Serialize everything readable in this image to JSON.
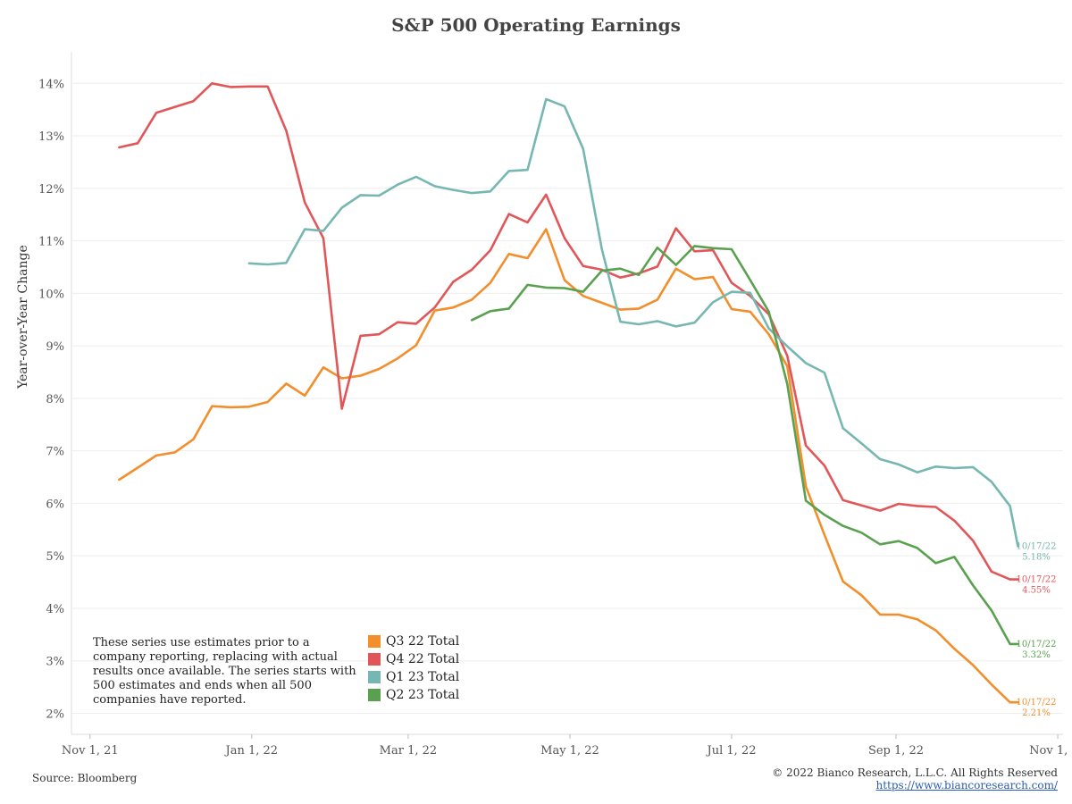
{
  "title": "S&P 500 Operating Earnings",
  "note": "These series use estimates prior to a company reporting, replacing with actual results once available. The series starts with 500 estimates and ends when all 500 companies have reported.",
  "source": "Source: Bloomberg",
  "copyright": "© 2022 Bianco Research, L.L.C. All Rights Reserved",
  "url": "https://www.biancoresearch.com/",
  "chart_data": {
    "type": "line",
    "title": "S&P 500 Operating Earnings",
    "xlabel": "",
    "ylabel": "Year-over-Year Change",
    "y_unit": "%",
    "ylim": [
      1.6,
      14.6
    ],
    "xlim": [
      "2021-10-25",
      "2022-11-03"
    ],
    "grid": "horizontal",
    "legend_position": "bottom-center",
    "x_ticks": [
      {
        "label": "Nov 1, 21",
        "date": "2021-11-01"
      },
      {
        "label": "Jan 1, 22",
        "date": "2022-01-01"
      },
      {
        "label": "Mar 1, 22",
        "date": "2022-03-01"
      },
      {
        "label": "May 1, 22",
        "date": "2022-05-01"
      },
      {
        "label": "Jul 1, 22",
        "date": "2022-07-01"
      },
      {
        "label": "Sep 1, 22",
        "date": "2022-09-01"
      },
      {
        "label": "Nov 1, 22",
        "date": "2022-11-01"
      }
    ],
    "y_ticks": [
      {
        "label": "2%",
        "value": 2
      },
      {
        "label": "3%",
        "value": 3
      },
      {
        "label": "4%",
        "value": 4
      },
      {
        "label": "5%",
        "value": 5
      },
      {
        "label": "6%",
        "value": 6
      },
      {
        "label": "7%",
        "value": 7
      },
      {
        "label": "8%",
        "value": 8
      },
      {
        "label": "9%",
        "value": 9
      },
      {
        "label": "10%",
        "value": 10
      },
      {
        "label": "11%",
        "value": 11
      },
      {
        "label": "12%",
        "value": 12
      },
      {
        "label": "13%",
        "value": 13
      },
      {
        "label": "14%",
        "value": 14
      }
    ],
    "series": [
      {
        "name": "Q3 22 Total",
        "color": "#f28e2b",
        "end_label": {
          "date": "10/17/22",
          "value": "2.21%"
        },
        "x": [
          "2021-11-12",
          "2021-11-19",
          "2021-11-26",
          "2021-12-03",
          "2021-12-10",
          "2021-12-17",
          "2021-12-24",
          "2021-12-31",
          "2022-01-07",
          "2022-01-14",
          "2022-01-21",
          "2022-01-28",
          "2022-02-04",
          "2022-02-11",
          "2022-02-18",
          "2022-02-25",
          "2022-03-04",
          "2022-03-11",
          "2022-03-18",
          "2022-03-25",
          "2022-04-01",
          "2022-04-08",
          "2022-04-15",
          "2022-04-22",
          "2022-04-29",
          "2022-05-06",
          "2022-05-13",
          "2022-05-20",
          "2022-05-27",
          "2022-06-03",
          "2022-06-10",
          "2022-06-17",
          "2022-06-24",
          "2022-07-01",
          "2022-07-08",
          "2022-07-15",
          "2022-07-22",
          "2022-07-29",
          "2022-08-05",
          "2022-08-12",
          "2022-08-19",
          "2022-08-26",
          "2022-09-02",
          "2022-09-09",
          "2022-09-16",
          "2022-09-23",
          "2022-09-30",
          "2022-10-07",
          "2022-10-14",
          "2022-10-17"
        ],
        "values": [
          6.45,
          6.68,
          6.91,
          6.97,
          7.22,
          7.85,
          7.83,
          7.84,
          7.93,
          8.28,
          8.05,
          8.59,
          8.38,
          8.43,
          8.56,
          8.76,
          9.01,
          9.67,
          9.73,
          9.88,
          10.2,
          10.75,
          10.67,
          11.22,
          10.25,
          9.95,
          9.82,
          9.69,
          9.71,
          9.88,
          10.47,
          10.27,
          10.31,
          9.7,
          9.65,
          9.22,
          8.61,
          6.32,
          5.4,
          4.51,
          4.25,
          3.88,
          3.88,
          3.79,
          3.58,
          3.23,
          2.92,
          2.55,
          2.21,
          2.21
        ]
      },
      {
        "name": "Q4 22 Total",
        "color": "#e15759",
        "end_label": {
          "date": "10/17/22",
          "value": "4.55%"
        },
        "x": [
          "2021-11-12",
          "2021-11-19",
          "2021-11-26",
          "2021-12-03",
          "2021-12-10",
          "2021-12-17",
          "2021-12-24",
          "2021-12-31",
          "2022-01-07",
          "2022-01-14",
          "2022-01-21",
          "2022-01-28",
          "2022-02-04",
          "2022-02-11",
          "2022-02-18",
          "2022-02-25",
          "2022-03-04",
          "2022-03-11",
          "2022-03-18",
          "2022-03-25",
          "2022-04-01",
          "2022-04-08",
          "2022-04-15",
          "2022-04-22",
          "2022-04-29",
          "2022-05-06",
          "2022-05-13",
          "2022-05-20",
          "2022-05-27",
          "2022-06-03",
          "2022-06-10",
          "2022-06-17",
          "2022-06-24",
          "2022-07-01",
          "2022-07-08",
          "2022-07-15",
          "2022-07-22",
          "2022-07-29",
          "2022-08-05",
          "2022-08-12",
          "2022-08-19",
          "2022-08-26",
          "2022-09-02",
          "2022-09-09",
          "2022-09-16",
          "2022-09-23",
          "2022-09-30",
          "2022-10-07",
          "2022-10-14",
          "2022-10-17"
        ],
        "values": [
          12.78,
          12.86,
          13.44,
          13.55,
          13.66,
          14.0,
          13.93,
          13.94,
          13.94,
          13.1,
          11.73,
          11.05,
          7.8,
          9.19,
          9.22,
          9.45,
          9.42,
          9.73,
          10.22,
          10.45,
          10.82,
          11.51,
          11.35,
          11.88,
          11.05,
          10.52,
          10.45,
          10.3,
          10.38,
          10.51,
          11.24,
          10.8,
          10.82,
          10.2,
          9.95,
          9.6,
          8.81,
          7.1,
          6.72,
          6.06,
          5.96,
          5.86,
          5.99,
          5.95,
          5.93,
          5.67,
          5.29,
          4.7,
          4.55,
          4.55
        ]
      },
      {
        "name": "Q1 23 Total",
        "color": "#76b7b2",
        "end_label": {
          "date": "10/17/22",
          "value": "5.18%"
        },
        "x": [
          "2021-12-31",
          "2022-01-07",
          "2022-01-14",
          "2022-01-21",
          "2022-01-28",
          "2022-02-04",
          "2022-02-11",
          "2022-02-18",
          "2022-02-25",
          "2022-03-04",
          "2022-03-11",
          "2022-03-18",
          "2022-03-25",
          "2022-04-01",
          "2022-04-08",
          "2022-04-15",
          "2022-04-22",
          "2022-04-29",
          "2022-05-06",
          "2022-05-13",
          "2022-05-20",
          "2022-05-27",
          "2022-06-03",
          "2022-06-10",
          "2022-06-17",
          "2022-06-24",
          "2022-07-01",
          "2022-07-08",
          "2022-07-15",
          "2022-07-22",
          "2022-07-29",
          "2022-08-05",
          "2022-08-12",
          "2022-08-19",
          "2022-08-26",
          "2022-09-02",
          "2022-09-09",
          "2022-09-16",
          "2022-09-23",
          "2022-09-30",
          "2022-10-07",
          "2022-10-14",
          "2022-10-17"
        ],
        "values": [
          10.57,
          10.55,
          10.58,
          11.22,
          11.19,
          11.63,
          11.87,
          11.86,
          12.07,
          12.22,
          12.04,
          11.97,
          11.91,
          11.94,
          12.33,
          12.35,
          13.7,
          13.56,
          12.75,
          10.85,
          9.46,
          9.41,
          9.47,
          9.37,
          9.44,
          9.83,
          10.03,
          10.01,
          9.33,
          8.99,
          8.67,
          8.49,
          7.43,
          7.14,
          6.84,
          6.74,
          6.59,
          6.7,
          6.67,
          6.69,
          6.41,
          5.95,
          5.18
        ]
      },
      {
        "name": "Q2 23 Total",
        "color": "#59a14f",
        "end_label": {
          "date": "10/17/22",
          "value": "3.32%"
        },
        "x": [
          "2022-03-25",
          "2022-04-01",
          "2022-04-08",
          "2022-04-15",
          "2022-04-22",
          "2022-04-29",
          "2022-05-06",
          "2022-05-13",
          "2022-05-20",
          "2022-05-27",
          "2022-06-03",
          "2022-06-10",
          "2022-06-17",
          "2022-06-24",
          "2022-07-01",
          "2022-07-08",
          "2022-07-15",
          "2022-07-22",
          "2022-07-29",
          "2022-08-05",
          "2022-08-12",
          "2022-08-19",
          "2022-08-26",
          "2022-09-02",
          "2022-09-09",
          "2022-09-16",
          "2022-09-23",
          "2022-09-30",
          "2022-10-07",
          "2022-10-14",
          "2022-10-17"
        ],
        "values": [
          9.49,
          9.66,
          9.71,
          10.16,
          10.11,
          10.1,
          10.03,
          10.43,
          10.47,
          10.35,
          10.87,
          10.54,
          10.9,
          10.86,
          10.84,
          10.25,
          9.65,
          8.27,
          6.05,
          5.78,
          5.57,
          5.44,
          5.22,
          5.28,
          5.15,
          4.86,
          4.98,
          4.44,
          3.96,
          3.32,
          3.32
        ]
      }
    ]
  }
}
